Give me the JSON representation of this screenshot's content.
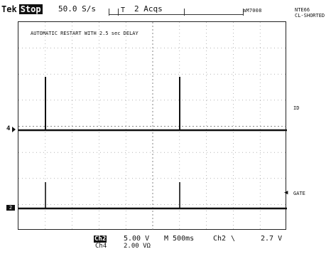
{
  "header": {
    "brand": "Tek",
    "mode": "Stop",
    "sample_rate": "50.0 S/s",
    "acquisitions": "2 Acqs",
    "trigger_marker": "T",
    "instrument_id": "aM7008",
    "notes_line1": "NTE66",
    "notes_line2": "CL-SHORTED"
  },
  "screen": {
    "annotation": "AUTOMATIC RESTART WITH 2.5 sec DELAY",
    "ch4_label": "4",
    "ch2_label": "2",
    "right_label_id": "ID",
    "right_label_gate": "GATE"
  },
  "footer": {
    "ch2": "Ch2",
    "ch2_scale": "5.00 V",
    "ch4": "Ch4",
    "ch4_scale": "2.00 VΩ",
    "timebase": "M 500ms",
    "trigger_source": "Ch2",
    "trigger_slope": "\\",
    "trigger_level": "2.7 V"
  },
  "colors": {
    "trace": "#111111",
    "grid": "#666666",
    "background": "#ffffff"
  }
}
